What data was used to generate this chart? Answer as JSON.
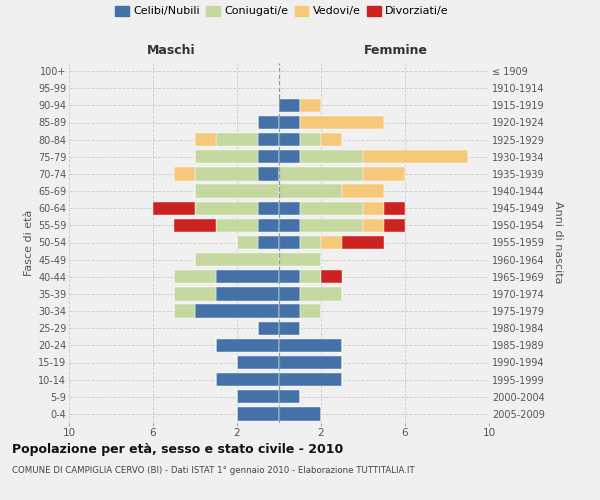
{
  "age_groups": [
    "0-4",
    "5-9",
    "10-14",
    "15-19",
    "20-24",
    "25-29",
    "30-34",
    "35-39",
    "40-44",
    "45-49",
    "50-54",
    "55-59",
    "60-64",
    "65-69",
    "70-74",
    "75-79",
    "80-84",
    "85-89",
    "90-94",
    "95-99",
    "100+"
  ],
  "birth_years": [
    "2005-2009",
    "2000-2004",
    "1995-1999",
    "1990-1994",
    "1985-1989",
    "1980-1984",
    "1975-1979",
    "1970-1974",
    "1965-1969",
    "1960-1964",
    "1955-1959",
    "1950-1954",
    "1945-1949",
    "1940-1944",
    "1935-1939",
    "1930-1934",
    "1925-1929",
    "1920-1924",
    "1915-1919",
    "1910-1914",
    "≤ 1909"
  ],
  "maschi": {
    "celibi": [
      2,
      2,
      3,
      2,
      3,
      1,
      4,
      3,
      3,
      0,
      1,
      1,
      1,
      0,
      1,
      1,
      1,
      1,
      0,
      0,
      0
    ],
    "coniugati": [
      0,
      0,
      0,
      0,
      0,
      0,
      1,
      2,
      2,
      4,
      1,
      2,
      3,
      4,
      3,
      3,
      2,
      0,
      0,
      0,
      0
    ],
    "vedovi": [
      0,
      0,
      0,
      0,
      0,
      0,
      0,
      0,
      0,
      0,
      0,
      0,
      0,
      0,
      1,
      0,
      1,
      0,
      0,
      0,
      0
    ],
    "divorziati": [
      0,
      0,
      0,
      0,
      0,
      0,
      0,
      0,
      0,
      0,
      0,
      2,
      2,
      0,
      0,
      0,
      0,
      0,
      0,
      0,
      0
    ]
  },
  "femmine": {
    "nubili": [
      2,
      1,
      3,
      3,
      3,
      1,
      1,
      1,
      1,
      0,
      1,
      1,
      1,
      0,
      0,
      1,
      1,
      1,
      1,
      0,
      0
    ],
    "coniugate": [
      0,
      0,
      0,
      0,
      0,
      0,
      1,
      2,
      1,
      2,
      1,
      3,
      3,
      3,
      4,
      3,
      1,
      0,
      0,
      0,
      0
    ],
    "vedove": [
      0,
      0,
      0,
      0,
      0,
      0,
      0,
      0,
      0,
      0,
      1,
      1,
      1,
      2,
      2,
      5,
      1,
      4,
      1,
      0,
      0
    ],
    "divorziate": [
      0,
      0,
      0,
      0,
      0,
      0,
      0,
      0,
      1,
      0,
      2,
      1,
      1,
      0,
      0,
      0,
      0,
      0,
      0,
      0,
      0
    ]
  },
  "color_celibi": "#4472a8",
  "color_coniugati": "#c5d8a0",
  "color_vedovi": "#f5c87a",
  "color_divorziati": "#cc2222",
  "title": "Popolazione per età, sesso e stato civile - 2010",
  "subtitle": "COMUNE DI CAMPIGLIA CERVO (BI) - Dati ISTAT 1° gennaio 2010 - Elaborazione TUTTITALIA.IT",
  "ylabel_left": "Fasce di età",
  "ylabel_right": "Anni di nascita",
  "xlabel_maschi": "Maschi",
  "xlabel_femmine": "Femmine",
  "xticks": [
    10,
    6,
    2,
    2,
    6,
    10
  ],
  "xlim": 10,
  "bg_color": "#f0f0f0",
  "grid_color": "#cccccc"
}
